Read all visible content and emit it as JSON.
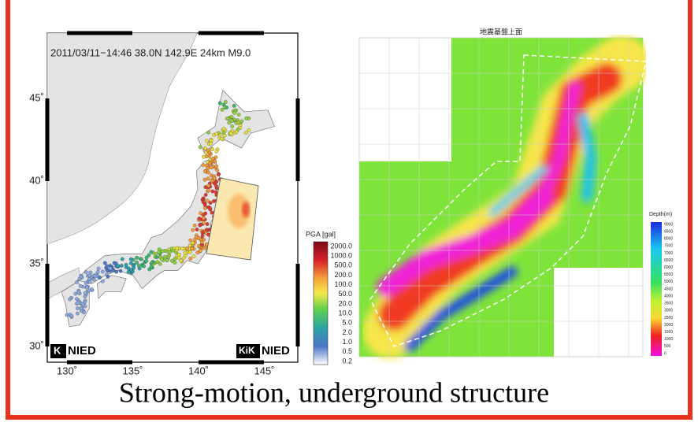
{
  "left_map": {
    "header": "2011/03/11−14:46 38.0N 142.9E 24km M9.0",
    "lat_labels": [
      "45˚",
      "40˚",
      "35˚",
      "30˚"
    ],
    "lon_labels": [
      "130˚",
      "135˚",
      "140˚",
      "145˚"
    ],
    "legend_title": "PGA [gal]",
    "legend_labels": [
      "2000.0",
      "1000.0",
      "500.0",
      "200.0",
      "100.0",
      "50.0",
      "20.0",
      "10.0",
      "5.0",
      "2.0",
      "1.0",
      "0.5",
      "0.2"
    ],
    "logo_left": "NIED",
    "logo_right": "NIED"
  },
  "right_map": {
    "title": "地震基盤上面",
    "legend_title": "Depth(m)",
    "legend_labels": [
      "9000",
      "8500",
      "8000",
      "7500",
      "7000",
      "6500",
      "6000",
      "5500",
      "5000",
      "4500",
      "4000",
      "3500",
      "3000",
      "2500",
      "2000",
      "1500",
      "1000",
      "500",
      "0"
    ]
  },
  "caption": "Strong-motion, underground structure"
}
